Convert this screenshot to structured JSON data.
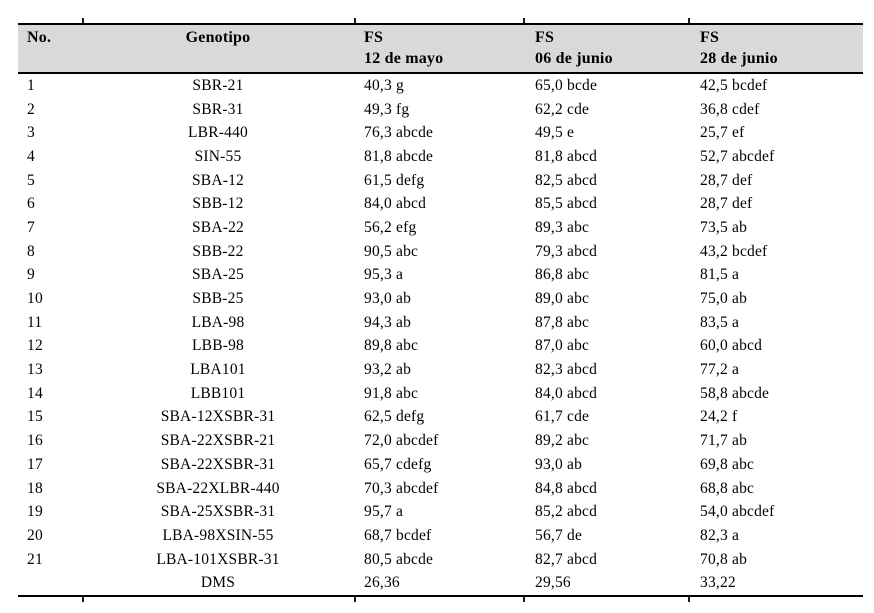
{
  "page": {
    "background": "#ffffff"
  },
  "colors": {
    "header_bg": "#d9d9d9",
    "rule": "#000000",
    "text": "#000000"
  },
  "table": {
    "columns": [
      {
        "label": "No.",
        "sublabel": ""
      },
      {
        "label": "Genotipo",
        "sublabel": ""
      },
      {
        "label": "FS",
        "sublabel": "12 de mayo"
      },
      {
        "label": "FS",
        "sublabel": "06 de junio"
      },
      {
        "label": "FS",
        "sublabel": "28 de junio"
      }
    ],
    "rows": [
      [
        "1",
        "SBR-21",
        "40,3 g",
        "65,0 bcde",
        "42,5 bcdef"
      ],
      [
        "2",
        "SBR-31",
        "49,3 fg",
        "62,2 cde",
        "36,8 cdef"
      ],
      [
        "3",
        "LBR-440",
        "76,3 abcde",
        "49,5 e",
        "25,7 ef"
      ],
      [
        "4",
        "SIN-55",
        "81,8 abcde",
        "81,8 abcd",
        "52,7 abcdef"
      ],
      [
        "5",
        "SBA-12",
        "61,5 defg",
        "82,5 abcd",
        "28,7 def"
      ],
      [
        "6",
        "SBB-12",
        "84,0 abcd",
        "85,5 abcd",
        "28,7 def"
      ],
      [
        "7",
        "SBA-22",
        "56,2 efg",
        "89,3 abc",
        "73,5 ab"
      ],
      [
        "8",
        "SBB-22",
        "90,5 abc",
        "79,3 abcd",
        "43,2 bcdef"
      ],
      [
        "9",
        "SBA-25",
        "95,3 a",
        "86,8 abc",
        "81,5 a"
      ],
      [
        "10",
        "SBB-25",
        "93,0 ab",
        "89,0 abc",
        "75,0 ab"
      ],
      [
        "11",
        "LBA-98",
        "94,3 ab",
        "87,8 abc",
        "83,5 a"
      ],
      [
        "12",
        "LBB-98",
        "89,8 abc",
        "87,0 abc",
        "60,0 abcd"
      ],
      [
        "13",
        "LBA101",
        "93,2 ab",
        "82,3 abcd",
        "77,2 a"
      ],
      [
        "14",
        "LBB101",
        "91,8 abc",
        "84,0 abcd",
        "58,8 abcde"
      ],
      [
        "15",
        "SBA-12XSBR-31",
        "62,5 defg",
        "61,7 cde",
        "24,2 f"
      ],
      [
        "16",
        "SBA-22XSBR-21",
        "72,0 abcdef",
        "89,2 abc",
        "71,7 ab"
      ],
      [
        "17",
        "SBA-22XSBR-31",
        "65,7 cdefg",
        "93,0 ab",
        "69,8 abc"
      ],
      [
        "18",
        "SBA-22XLBR-440",
        "70,3 abcdef",
        "84,8 abcd",
        "68,8 abc"
      ],
      [
        "19",
        "SBA-25XSBR-31",
        "95,7 a",
        "85,2 abcd",
        "54,0 abcdef"
      ],
      [
        "20",
        "LBA-98XSIN-55",
        "68,7 bcdef",
        "56,7 de",
        "82,3 a"
      ],
      [
        "21",
        "LBA-101XSBR-31",
        "80,5 abcde",
        "82,7 abcd",
        "70,8 ab"
      ]
    ],
    "dms_row": [
      "",
      "DMS",
      "26,36",
      "29,56",
      "33,22"
    ]
  }
}
